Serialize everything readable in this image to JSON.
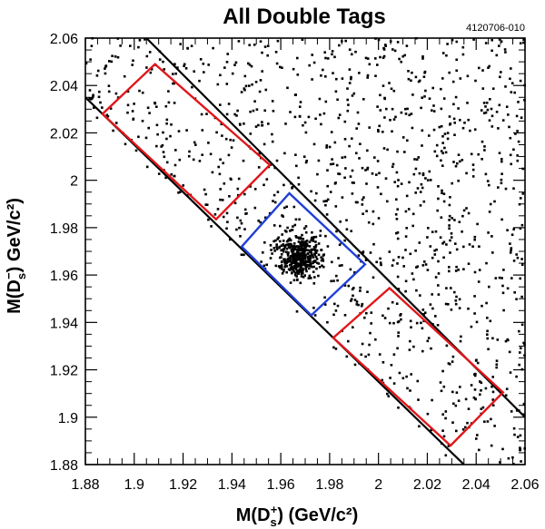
{
  "chart_data": {
    "type": "scatter",
    "title": "All Double Tags",
    "figure_id": "4120706-010",
    "xlabel": {
      "prefix": "M(D",
      "sub": "s",
      "sup": "+",
      "suffix": ") (GeV/c²)"
    },
    "ylabel": {
      "prefix": "M(D",
      "sub": "s",
      "sup": "−",
      "suffix": ") GeV/c²)"
    },
    "xlim": [
      1.88,
      2.06
    ],
    "ylim": [
      1.88,
      2.06
    ],
    "x_ticks": [
      "1.88",
      "1.9",
      "1.92",
      "1.94",
      "1.96",
      "1.98",
      "2",
      "2.02",
      "2.04",
      "2.06"
    ],
    "y_ticks": [
      "1.88",
      "1.9",
      "1.92",
      "1.94",
      "1.96",
      "1.98",
      "2",
      "2.02",
      "2.04",
      "2.06"
    ],
    "grid": false,
    "points": {
      "background_count": 1150,
      "signal_count": 420,
      "signal_center": [
        1.968,
        1.968
      ],
      "signal_sigma": 0.0045,
      "background_region": "x + y >= 3.911",
      "color": "#000000"
    },
    "lines": [
      {
        "name": "diagonal-upper",
        "color": "#000000",
        "x": [
          1.905,
          2.06
        ],
        "y": [
          2.06,
          1.9
        ]
      },
      {
        "name": "diagonal-lower",
        "color": "#000000",
        "x": [
          1.88,
          2.035
        ],
        "y": [
          2.035,
          1.88
        ]
      }
    ],
    "regions": [
      {
        "name": "signal-box",
        "color": "#1f3fd6",
        "corners": [
          [
            1.944,
            1.972
          ],
          [
            1.9635,
            1.9945
          ],
          [
            1.9945,
            1.9645
          ],
          [
            1.9725,
            1.943
          ]
        ]
      },
      {
        "name": "sideband-upper",
        "color": "#e0161a",
        "corners": [
          [
            1.887,
            2.028
          ],
          [
            1.9085,
            2.049
          ],
          [
            1.9555,
            2.0065
          ],
          [
            1.9335,
            1.9835
          ]
        ]
      },
      {
        "name": "sideband-lower",
        "color": "#e0161a",
        "corners": [
          [
            1.9815,
            1.9335
          ],
          [
            2.0045,
            1.9545
          ],
          [
            2.051,
            1.9105
          ],
          [
            2.0295,
            1.888
          ]
        ]
      }
    ]
  }
}
